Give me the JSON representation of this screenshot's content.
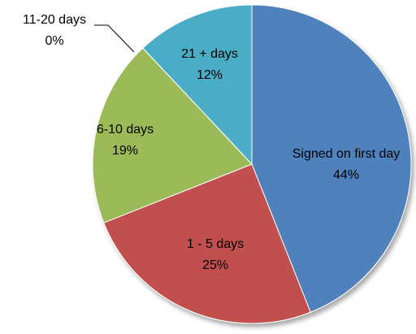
{
  "chart_data": {
    "type": "pie",
    "title": "",
    "slices": [
      {
        "label": "Signed on first day",
        "value": 44,
        "percent_label": "44%",
        "color": "#4F81BD"
      },
      {
        "label": "1 - 5 days",
        "value": 25,
        "percent_label": "25%",
        "color": "#C0504D"
      },
      {
        "label": "6-10 days",
        "value": 19,
        "percent_label": "19%",
        "color": "#9BBB59"
      },
      {
        "label": "11-20 days",
        "value": 0,
        "percent_label": "0%",
        "color": "#8064A2"
      },
      {
        "label": "21 +  days",
        "value": 12,
        "percent_label": "12%",
        "color": "#4BACC6"
      }
    ],
    "start": "12 o'clock",
    "direction": "clockwise",
    "legend": "none",
    "labels": "inside slices; 11-20 days labeled outside with leader line"
  }
}
